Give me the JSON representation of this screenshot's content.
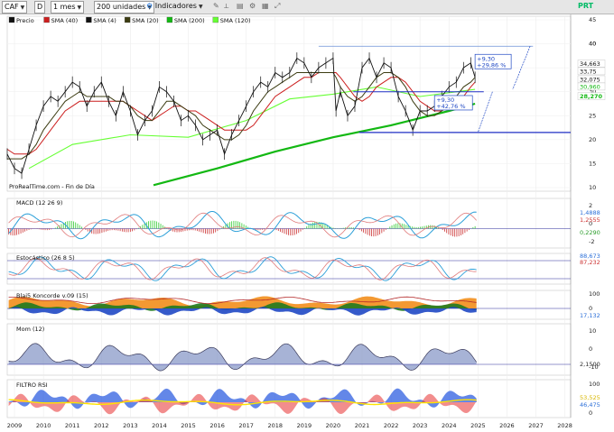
{
  "toolbar": {
    "ticker": "CAF",
    "period_short": "D",
    "period": "1 mes",
    "units": "200 unidades",
    "indicators": "Indicadores"
  },
  "price_legend": [
    "Precio",
    "SMA (40)",
    "SMA (4)",
    "SMA (20)",
    "SMA (200)",
    "SMA (120)"
  ],
  "colors": {
    "sma4": "#111111",
    "sma20": "#3c3c12",
    "sma40": "#cc1f1f",
    "sma120": "#66ff33",
    "sma200": "#13b813",
    "price": "#111111",
    "macd": "#2b9fd8",
    "signal": "#e07a7a",
    "hist_pos": "#33cc33",
    "hist_neg": "#cc3333",
    "orange": "#f28e1c",
    "dark_green": "#1f7a1f",
    "blue": "#1f48c4",
    "mom_pos": "#8a9ac8",
    "mom_neg": "#c89090",
    "rsi_blue": "#2f5fe0",
    "rsi_red": "#e83030",
    "rsi_yellow": "#ffe400"
  },
  "annotations": {
    "upper_pct": "+9,30\n+29,86 %",
    "upper_abs": "+9,30",
    "upper_rel": "+29,86 %",
    "lower_abs": "+9,30",
    "lower_rel": "+42,76 %",
    "watermark": "ProRealTime.com - Fin de Día",
    "logo": "PRT"
  },
  "indicator_titles": {
    "macd": "MACD (12 26 9)",
    "stoch": "Estocástico (26 8 5)",
    "koncorde": "Blai5 Koncorde v.09 (15)",
    "mom": "Mom (12)",
    "rsi": "FILTRO RSI"
  },
  "chart_data": {
    "type": "line",
    "x_label_years": [
      "2009",
      "2010",
      "2011",
      "2012",
      "2013",
      "2014",
      "2015",
      "2016",
      "2017",
      "2018",
      "2019",
      "2020",
      "2021",
      "2022",
      "2023",
      "2024",
      "2025",
      "2026",
      "2027",
      "2028"
    ],
    "price_panel": {
      "ylim": [
        10,
        45
      ],
      "yticks": [
        10,
        15,
        20,
        25,
        30,
        35,
        40,
        45
      ],
      "price_x": [
        2008.75,
        2009.0,
        2009.25,
        2009.5,
        2009.75,
        2010.0,
        2010.25,
        2010.5,
        2010.75,
        2011.0,
        2011.25,
        2011.5,
        2011.75,
        2012.0,
        2012.25,
        2012.5,
        2012.75,
        2013.0,
        2013.25,
        2013.5,
        2013.75,
        2014.0,
        2014.25,
        2014.5,
        2014.75,
        2015.0,
        2015.25,
        2015.5,
        2015.75,
        2016.0,
        2016.25,
        2016.5,
        2016.75,
        2017.0,
        2017.25,
        2017.5,
        2017.75,
        2018.0,
        2018.25,
        2018.5,
        2018.75,
        2019.0,
        2019.25,
        2019.5,
        2019.75,
        2020.0,
        2020.1,
        2020.25,
        2020.5,
        2020.75,
        2021.0,
        2021.25,
        2021.5,
        2021.75,
        2022.0,
        2022.25,
        2022.5,
        2022.75,
        2023.0,
        2023.25,
        2023.5,
        2023.75,
        2024.0,
        2024.25,
        2024.5,
        2024.75,
        2024.9
      ],
      "price_y": [
        17,
        14,
        13,
        18,
        23,
        27,
        29,
        28,
        30,
        32,
        31,
        27,
        30,
        32,
        28,
        25,
        30,
        26,
        21,
        24,
        26,
        31,
        30,
        28,
        24,
        25,
        23,
        20,
        21,
        22,
        17,
        21,
        24,
        27,
        30,
        32,
        31,
        34,
        33,
        34,
        37,
        36,
        33,
        35,
        36,
        37,
        26,
        30,
        25,
        27,
        35,
        37,
        33,
        36,
        35,
        29,
        26,
        22,
        26,
        26,
        27,
        29,
        31,
        32,
        35,
        36,
        33
      ],
      "sma20": [
        16,
        16,
        16,
        17,
        19,
        22,
        24,
        26,
        28,
        29,
        30,
        29,
        29,
        29,
        29,
        28,
        28,
        27,
        25,
        24,
        24,
        26,
        28,
        28,
        27,
        26,
        25,
        23,
        22,
        21,
        20,
        20,
        21,
        23,
        26,
        28,
        30,
        31,
        32,
        33,
        34,
        34,
        34,
        34,
        34,
        34,
        33,
        31,
        29,
        28,
        29,
        31,
        33,
        34,
        34,
        33,
        31,
        28,
        26,
        25,
        25,
        26,
        28,
        29,
        31,
        32,
        33
      ],
      "sma40": [
        18,
        17,
        17,
        17,
        18,
        20,
        22,
        24,
        26,
        27,
        28,
        28,
        28,
        28,
        28,
        28,
        28,
        27,
        26,
        25,
        24,
        25,
        26,
        27,
        27,
        26,
        26,
        25,
        24,
        23,
        22,
        22,
        22,
        22,
        23,
        25,
        27,
        29,
        30,
        31,
        32,
        33,
        33,
        34,
        34,
        34,
        34,
        33,
        31,
        29,
        28,
        29,
        31,
        32,
        33,
        33,
        32,
        30,
        28,
        27,
        26,
        26,
        27,
        28,
        29,
        31,
        32
      ],
      "sma120": [
        null,
        null,
        null,
        null,
        null,
        null,
        null,
        null,
        null,
        null,
        null,
        null,
        null,
        null,
        null,
        null,
        null,
        null,
        null,
        null,
        null,
        null,
        null,
        null,
        null,
        null,
        null,
        null,
        null,
        null,
        null,
        null,
        null,
        null,
        null,
        null,
        null,
        null,
        null,
        null,
        null,
        null,
        null,
        null,
        null,
        null,
        null,
        null,
        null,
        null,
        null,
        null,
        null,
        null,
        null,
        null,
        null,
        null,
        null,
        null,
        null,
        null,
        null,
        null,
        null,
        null,
        null
      ],
      "hline_lower": 21.5,
      "hline_mid": 30,
      "hline_top": 39.5,
      "price_tags": [
        {
          "value": "40",
          "color": "#222"
        },
        {
          "value": "34,663",
          "color": "#111"
        },
        {
          "value": "33,75",
          "color": "#111"
        },
        {
          "value": "32,075",
          "color": "#111"
        },
        {
          "value": "30,960",
          "color": "#13b813"
        },
        {
          "value": "28,270",
          "color": "#13b813"
        }
      ]
    },
    "macd_panel": {
      "yticks": [
        "2",
        "0",
        "-2"
      ],
      "tags": [
        "1,4888",
        "1,2555",
        "0,2290"
      ]
    },
    "stoch_panel": {
      "tags": [
        "88,673",
        "87,232"
      ]
    },
    "koncorde_panel": {
      "yticks": [
        "100",
        "0"
      ],
      "tags": [
        "17,132"
      ]
    },
    "mom_panel": {
      "yticks": [
        "10",
        "0",
        "-10"
      ],
      "tags": [
        "2,1500"
      ]
    },
    "rsi_panel": {
      "yticks": [
        "100",
        "0"
      ],
      "tags": [
        "53,525",
        "46,475"
      ]
    }
  }
}
